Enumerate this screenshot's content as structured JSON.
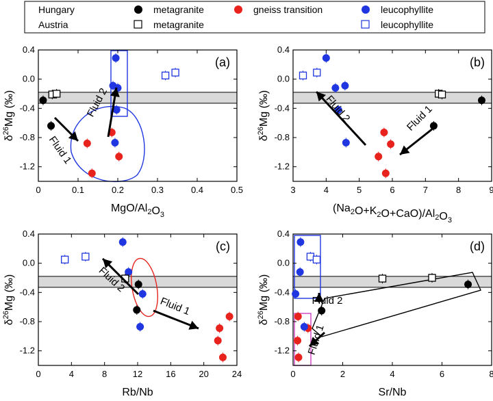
{
  "legend": {
    "rows": [
      {
        "region": "Hungary",
        "entries": [
          {
            "marker": "filled-circle",
            "color": "#000000",
            "label": "metagranite"
          },
          {
            "marker": "filled-circle",
            "color": "#e8231d",
            "label": "gneiss transition"
          },
          {
            "marker": "filled-circle",
            "color": "#1f36e0",
            "label": "leucophyllite"
          }
        ]
      },
      {
        "region": "Austria",
        "entries": [
          {
            "marker": "open-square",
            "color": "#000000",
            "label": "metagranite"
          },
          {
            "marker": "open-square",
            "color": "#1f36e0",
            "label": "leucophyllite"
          }
        ]
      }
    ]
  },
  "colors": {
    "black": "#000000",
    "red": "#e8231d",
    "blue": "#1f36e0",
    "magenta": "#d040c0",
    "band": "#d9d9d9"
  },
  "chart_data": [
    {
      "type": "scatter",
      "panel": "(a)",
      "xlabel": "MgO/Al2O3",
      "ylabel": "δ26Mg (‰)",
      "xlim": [
        0,
        0.5
      ],
      "ylim": [
        -1.4,
        0.4
      ],
      "xticks": [
        0,
        0.1,
        0.2,
        0.3,
        0.4,
        0.5
      ],
      "xtick_labels": [
        "0",
        "0.1",
        "0.2",
        "0.3",
        "0.4",
        "0.5"
      ],
      "yticks": [
        0.4,
        0.0,
        -0.4,
        -0.8,
        -1.2
      ],
      "ytick_labels": [
        "0.4",
        "0.0",
        "-0.4",
        "-0.8",
        "-1.2"
      ],
      "band": [
        -0.33,
        -0.18
      ],
      "series": [
        {
          "name": "Hungary metagranite",
          "marker": "filled-circle",
          "color": "#000000",
          "points": [
            [
              0.012,
              -0.29
            ],
            [
              0.032,
              -0.64
            ]
          ]
        },
        {
          "name": "Hungary gneiss transition",
          "marker": "filled-circle",
          "color": "#e8231d",
          "points": [
            [
              0.123,
              -0.88
            ],
            [
              0.135,
              -1.29
            ],
            [
              0.185,
              -0.73
            ],
            [
              0.203,
              -1.06
            ]
          ]
        },
        {
          "name": "Hungary leucophyllite",
          "marker": "filled-circle",
          "color": "#1f36e0",
          "points": [
            [
              0.195,
              0.29
            ],
            [
              0.188,
              -0.09
            ],
            [
              0.2,
              -0.12
            ],
            [
              0.197,
              -0.42
            ],
            [
              0.193,
              -0.87
            ]
          ]
        },
        {
          "name": "Austria metagranite",
          "marker": "open-square",
          "color": "#000000",
          "points": [
            [
              0.035,
              -0.21
            ],
            [
              0.046,
              -0.2
            ]
          ]
        },
        {
          "name": "Austria leucophyllite",
          "marker": "open-square",
          "color": "#1f36e0",
          "points": [
            [
              0.32,
              0.05
            ],
            [
              0.345,
              0.09
            ]
          ]
        }
      ],
      "annotations": [
        {
          "text": "Fluid 1",
          "angle": 55
        },
        {
          "text": "Fluid 2",
          "angle": -62
        }
      ]
    },
    {
      "type": "scatter",
      "panel": "(b)",
      "xlabel": "(Na2O+K2O+CaO)/Al2O3",
      "ylabel": "δ26Mg (‰)",
      "xlim": [
        3,
        9
      ],
      "ylim": [
        -1.4,
        0.4
      ],
      "xticks": [
        3,
        4,
        5,
        6,
        7,
        8,
        9
      ],
      "xtick_labels": [
        "3",
        "4",
        "5",
        "6",
        "7",
        "8",
        "9"
      ],
      "yticks": [
        0.4,
        0.0,
        -0.4,
        -0.8,
        -1.2
      ],
      "ytick_labels": [
        "0.4",
        "0.0",
        "-0.4",
        "-0.8",
        "-1.2"
      ],
      "band": [
        -0.33,
        -0.18
      ],
      "series": [
        {
          "name": "Hungary metagranite",
          "marker": "filled-circle",
          "color": "#000000",
          "points": [
            [
              8.7,
              -0.29
            ],
            [
              7.25,
              -0.64
            ]
          ]
        },
        {
          "name": "Hungary gneiss transition",
          "marker": "filled-circle",
          "color": "#e8231d",
          "points": [
            [
              5.58,
              -1.06
            ],
            [
              5.75,
              -0.73
            ],
            [
              5.8,
              -1.29
            ],
            [
              5.95,
              -0.89
            ]
          ]
        },
        {
          "name": "Hungary leucophyllite",
          "marker": "filled-circle",
          "color": "#1f36e0",
          "points": [
            [
              4.0,
              0.29
            ],
            [
              4.28,
              -0.12
            ],
            [
              4.57,
              -0.09
            ],
            [
              4.37,
              -0.42
            ],
            [
              4.6,
              -0.87
            ]
          ]
        },
        {
          "name": "Austria metagranite",
          "marker": "open-square",
          "color": "#000000",
          "points": [
            [
              7.4,
              -0.2
            ],
            [
              7.5,
              -0.21
            ]
          ]
        },
        {
          "name": "Austria leucophyllite",
          "marker": "open-square",
          "color": "#1f36e0",
          "points": [
            [
              3.3,
              0.05
            ],
            [
              3.72,
              0.09
            ]
          ]
        }
      ],
      "annotations": [
        {
          "text": "Fluid 1",
          "angle": -45
        },
        {
          "text": "Fluid 2",
          "angle": 50
        }
      ]
    },
    {
      "type": "scatter",
      "panel": "(c)",
      "xlabel": "Rb/Nb",
      "ylabel": "δ26Mg (‰)",
      "xlim": [
        0,
        24
      ],
      "ylim": [
        -1.4,
        0.4
      ],
      "xticks": [
        0,
        4,
        8,
        12,
        16,
        20,
        24
      ],
      "xtick_labels": [
        "0",
        "4",
        "8",
        "12",
        "16",
        "20",
        "24"
      ],
      "yticks": [
        0.4,
        0.0,
        -0.4,
        -0.8,
        -1.2
      ],
      "ytick_labels": [
        "0.4",
        "0.0",
        "-0.4",
        "-0.8",
        "-1.2"
      ],
      "band": [
        -0.33,
        -0.18
      ],
      "series": [
        {
          "name": "Hungary metagranite",
          "marker": "filled-circle",
          "color": "#000000",
          "points": [
            [
              12.1,
              -0.29
            ],
            [
              11.9,
              -0.64
            ]
          ]
        },
        {
          "name": "Hungary gneiss transition",
          "marker": "filled-circle",
          "color": "#e8231d",
          "points": [
            [
              21.7,
              -1.06
            ],
            [
              21.9,
              -0.89
            ],
            [
              22.3,
              -1.29
            ],
            [
              23.1,
              -0.73
            ]
          ]
        },
        {
          "name": "Hungary leucophyllite",
          "marker": "filled-circle",
          "color": "#1f36e0",
          "points": [
            [
              10.2,
              0.29
            ],
            [
              10.9,
              -0.12
            ],
            [
              12.6,
              -0.42
            ],
            [
              12.3,
              -0.87
            ]
          ]
        },
        {
          "name": "Austria metagranite",
          "marker": "open-square",
          "color": "#000000",
          "points": [
            [
              10.5,
              -0.21
            ]
          ]
        },
        {
          "name": "Austria leucophyllite",
          "marker": "open-square",
          "color": "#1f36e0",
          "points": [
            [
              3.2,
              0.05
            ],
            [
              5.7,
              0.09
            ]
          ]
        }
      ],
      "annotations": [
        {
          "text": "Fluid 1",
          "angle": 22
        },
        {
          "text": "Fluid 2",
          "angle": 43
        }
      ]
    },
    {
      "type": "scatter",
      "panel": "(d)",
      "xlabel": "Sr/Nb",
      "ylabel": "δ26Mg (‰)",
      "xlim": [
        0,
        8
      ],
      "ylim": [
        -1.4,
        0.4
      ],
      "xticks": [
        0,
        2,
        4,
        6,
        8
      ],
      "xtick_labels": [
        "0",
        "2",
        "4",
        "6",
        "8"
      ],
      "yticks": [
        0.4,
        0.0,
        -0.4,
        -0.8,
        -1.2
      ],
      "ytick_labels": [
        "0.4",
        "0.0",
        "-0.4",
        "-0.8",
        "-1.2"
      ],
      "band": [
        -0.33,
        -0.18
      ],
      "series": [
        {
          "name": "Hungary metagranite",
          "marker": "filled-circle",
          "color": "#000000",
          "points": [
            [
              7.05,
              -0.29
            ],
            [
              1.15,
              -0.65
            ]
          ]
        },
        {
          "name": "Hungary gneiss transition",
          "marker": "filled-circle",
          "color": "#e8231d",
          "points": [
            [
              0.2,
              -0.73
            ],
            [
              0.18,
              -1.06
            ],
            [
              0.22,
              -1.29
            ],
            [
              0.6,
              -0.89
            ]
          ]
        },
        {
          "name": "Hungary leucophyllite",
          "marker": "filled-circle",
          "color": "#1f36e0",
          "points": [
            [
              0.3,
              0.29
            ],
            [
              0.28,
              -0.12
            ],
            [
              0.1,
              -0.42
            ],
            [
              0.45,
              -0.87
            ]
          ]
        },
        {
          "name": "Austria metagranite",
          "marker": "open-square",
          "color": "#000000",
          "points": [
            [
              3.6,
              -0.21
            ],
            [
              5.6,
              -0.2
            ]
          ]
        },
        {
          "name": "Austria leucophyllite",
          "marker": "open-square",
          "color": "#1f36e0",
          "points": [
            [
              0.7,
              0.09
            ],
            [
              0.95,
              0.05
            ]
          ]
        }
      ],
      "annotations": [
        {
          "text": "Fluid 1",
          "angle": -72
        },
        {
          "text": "Fluid 2",
          "angle": 0
        }
      ]
    }
  ]
}
